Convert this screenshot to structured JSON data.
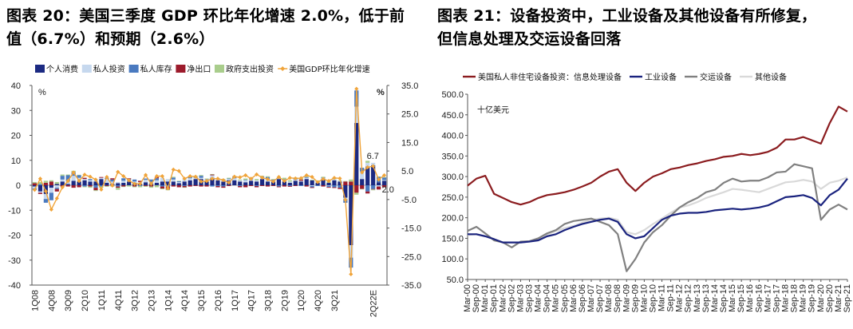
{
  "left": {
    "title_line1": "图表 20：美国三季度 GDP 环比年化增速 2.0%，低于前",
    "title_line2": "值（6.7%）和预期（2.6%）",
    "chart_data": {
      "type": "bar",
      "stacked": true,
      "legend_position": "top",
      "y_unit_left": "%",
      "y_unit_right": "%",
      "ylim": [
        -40,
        40
      ],
      "yticks": [
        -40,
        -30,
        -20,
        -10,
        0,
        10,
        20,
        30,
        40
      ],
      "y2lim": [
        -35,
        35
      ],
      "y2ticks": [
        "-35.0",
        "-25.0",
        "-15.0",
        "-5.0",
        "5.0",
        "15.0",
        "25.0",
        "35.0"
      ],
      "x_tick_labels": [
        "1Q08",
        "4Q08",
        "3Q09",
        "2Q10",
        "1Q11",
        "4Q11",
        "3Q12",
        "2Q13",
        "1Q14",
        "4Q14",
        "3Q15",
        "2Q16",
        "1Q17",
        "4Q17",
        "3Q18",
        "2Q19",
        "1Q20",
        "4Q20",
        "3Q21",
        "2Q22E"
      ],
      "annotations": [
        {
          "text": "6.7",
          "at": "2Q21"
        },
        {
          "text": "2.0",
          "at": "3Q21"
        }
      ],
      "series": [
        {
          "name": "个人消费",
          "color": "#1c2a82",
          "values": [
            -0.5,
            -2.5,
            -3.5,
            -1.0,
            0.5,
            1.5,
            0.5,
            1.8,
            1.5,
            2.0,
            1.5,
            1.5,
            2.5,
            1.0,
            0.5,
            0.8,
            1.0,
            1.5,
            1.0,
            0.5,
            1.2,
            0.8,
            1.0,
            1.5,
            1.5,
            1.5,
            0.8,
            1.5,
            2.0,
            2.5,
            2.5,
            1.5,
            3.0,
            2.0,
            1.5,
            2.0,
            2.0,
            1.5,
            1.2,
            1.8,
            1.5,
            2.5,
            1.5,
            1.5,
            2.5,
            1.5,
            1.0,
            1.8,
            1.5,
            2.5,
            2.0,
            1.0,
            2.5,
            1.0,
            2.0,
            1.5,
            -5.0,
            -24.0,
            25.0,
            2.5,
            7.5,
            8.0,
            1.2,
            1.8
          ]
        },
        {
          "name": "私人投资",
          "color": "#c6d8ee",
          "values": [
            -0.8,
            -0.5,
            -2.0,
            -2.0,
            -1.0,
            0.8,
            1.0,
            2.0,
            1.5,
            0.5,
            0.5,
            1.0,
            0.5,
            1.5,
            1.0,
            0.5,
            0.8,
            0.5,
            0.5,
            0.8,
            1.0,
            0.5,
            1.0,
            1.5,
            1.0,
            0.8,
            0.5,
            1.0,
            0.8,
            0.5,
            0.5,
            0.8,
            1.0,
            0.5,
            0.5,
            0.5,
            0.8,
            0.5,
            0.8,
            0.5,
            0.5,
            0.8,
            1.0,
            0.5,
            0.5,
            0.8,
            0.5,
            0.5,
            0.3,
            0.5,
            -0.3,
            0.2,
            0.3,
            -0.2,
            0.5,
            0.3,
            -0.5,
            -5.0,
            6.5,
            3.0,
            1.5,
            1.0,
            -0.5,
            0.3
          ]
        },
        {
          "name": "私人库存",
          "color": "#4a7ac0",
          "values": [
            -0.5,
            0.5,
            -1.5,
            -3.0,
            -0.5,
            1.5,
            2.5,
            1.5,
            1.0,
            -0.5,
            0.5,
            -1.0,
            -0.5,
            0.5,
            0.8,
            -0.5,
            1.0,
            0.5,
            0.8,
            -0.3,
            0.5,
            1.0,
            0.8,
            -0.5,
            -0.5,
            0.8,
            0.3,
            -0.3,
            0.5,
            0.3,
            0.8,
            0.2,
            -0.5,
            -0.3,
            -0.5,
            0.2,
            0.5,
            -0.3,
            0.2,
            0.5,
            -0.3,
            0.3,
            0.8,
            0.3,
            -0.5,
            0.2,
            -0.3,
            0.5,
            -0.3,
            0.3,
            -0.5,
            -0.3,
            0.3,
            -0.5,
            -0.8,
            -1.0,
            -1.5,
            -4.0,
            6.5,
            1.5,
            -2.5,
            -1.5,
            2.2,
            1.0
          ]
        },
        {
          "name": "净出口",
          "color": "#9c1b2c",
          "values": [
            0.8,
            -0.5,
            1.0,
            1.5,
            -1.0,
            -0.5,
            -0.5,
            -1.0,
            -0.8,
            0.5,
            -0.5,
            -1.0,
            0.3,
            -0.3,
            0.5,
            -0.5,
            -0.5,
            0.3,
            -0.5,
            0.5,
            -0.3,
            -0.5,
            0.5,
            -0.8,
            -1.2,
            -0.5,
            -0.8,
            -0.5,
            -0.5,
            -0.3,
            -0.5,
            -0.5,
            0.3,
            -0.5,
            -0.5,
            -0.3,
            0.2,
            -0.5,
            -0.8,
            -0.3,
            -0.5,
            -0.3,
            -0.5,
            -0.3,
            -0.3,
            -0.5,
            -0.3,
            -0.3,
            0.5,
            -0.5,
            -0.3,
            0.2,
            -0.5,
            -0.3,
            -0.3,
            -0.5,
            1.5,
            1.5,
            -3.0,
            -1.5,
            -0.8,
            -0.2,
            -1.2,
            -0.8
          ]
        },
        {
          "name": "政府支出投资",
          "color": "#a9cd8c",
          "values": [
            0.5,
            0.8,
            0.8,
            0.5,
            0.8,
            0.5,
            0.3,
            0.5,
            0.2,
            -0.3,
            -0.5,
            -0.3,
            -0.5,
            -0.3,
            -0.5,
            -0.8,
            -0.2,
            -0.5,
            -0.3,
            -0.5,
            -0.3,
            -0.5,
            -0.8,
            -0.3,
            -0.3,
            0.3,
            0.2,
            -0.2,
            0.3,
            0.5,
            0.3,
            0.2,
            0.2,
            0.3,
            0.5,
            0.3,
            0.2,
            0.3,
            0.5,
            0.3,
            0.5,
            0.2,
            0.3,
            0.2,
            0.3,
            0.5,
            0.5,
            0.3,
            0.5,
            0.3,
            0.2,
            0.5,
            0.3,
            0.5,
            0.5,
            0.2,
            0.2,
            0.8,
            -0.8,
            -0.1,
            0.8,
            -0.3,
            0.1,
            0.2
          ]
        },
        {
          "name": "美国GDP环比年化增速",
          "color": "#f0a43a",
          "kind": "line",
          "axis": "right",
          "values": [
            -1.6,
            2.3,
            -2.1,
            -8.5,
            -4.6,
            -0.7,
            1.5,
            4.5,
            1.5,
            3.7,
            3.0,
            2.0,
            -1.5,
            2.9,
            -0.1,
            4.7,
            3.2,
            1.7,
            0.5,
            0.5,
            3.6,
            0.5,
            3.2,
            3.2,
            -1.1,
            5.5,
            5.0,
            2.3,
            3.2,
            3.0,
            1.3,
            1.5,
            2.3,
            2.3,
            1.8,
            0.9,
            3.0,
            2.8,
            3.5,
            2.3,
            3.8,
            2.7,
            2.1,
            1.3,
            2.9,
            1.5,
            2.6,
            2.4,
            2.5,
            3.5,
            2.9,
            1.1,
            2.2,
            1.5,
            2.6,
            2.4,
            -5.1,
            -31.2,
            33.8,
            4.5,
            6.3,
            6.7,
            2.0,
            3.5
          ]
        }
      ],
      "legend": [
        "个人消费",
        "私人投资",
        "私人库存",
        "净出口",
        "政府支出投资",
        "美国GDP环比年化增速"
      ]
    }
  },
  "right": {
    "title_line1": "图表 21：设备投资中，工业设备及其他设备有所修复，",
    "title_line2": "但信息处理及交运设备回落",
    "chart_data": {
      "type": "line",
      "legend_position": "top",
      "unit_note": "十亿美元",
      "ylim": [
        50,
        500
      ],
      "yticks": [
        "50.0",
        "100.0",
        "150.0",
        "200.0",
        "250.0",
        "300.0",
        "350.0",
        "400.0",
        "450.0",
        "500.0"
      ],
      "x_tick_labels": [
        "Mar-00",
        "Sep-00",
        "Mar-01",
        "Sep-01",
        "Mar-02",
        "Sep-02",
        "Mar-03",
        "Sep-03",
        "Mar-04",
        "Sep-04",
        "Mar-05",
        "Sep-05",
        "Mar-06",
        "Sep-06",
        "Mar-07",
        "Sep-07",
        "Mar-08",
        "Sep-08",
        "Mar-09",
        "Sep-09",
        "Mar-10",
        "Sep-10",
        "Mar-11",
        "Sep-11",
        "Mar-12",
        "Sep-12",
        "Mar-13",
        "Sep-13",
        "Mar-14",
        "Sep-14",
        "Mar-15",
        "Sep-15",
        "Mar-16",
        "Sep-16",
        "Mar-17",
        "Sep-17",
        "Mar-18",
        "Sep-18",
        "Mar-19",
        "Sep-19",
        "Mar-20",
        "Sep-20",
        "Mar-21",
        "Sep-21"
      ],
      "series": [
        {
          "name": "美国私人非住宅设备投资：信息处理设备",
          "color": "#8b1c1f",
          "width": 2.2,
          "values": [
            278,
            295,
            302,
            258,
            248,
            238,
            232,
            238,
            248,
            255,
            258,
            262,
            268,
            276,
            285,
            300,
            312,
            318,
            285,
            265,
            285,
            300,
            308,
            318,
            322,
            328,
            332,
            338,
            342,
            348,
            350,
            355,
            352,
            355,
            360,
            370,
            390,
            390,
            396,
            388,
            380,
            430,
            470,
            458
          ]
        },
        {
          "name": "工业设备",
          "color": "#1a237e",
          "width": 2.2,
          "values": [
            160,
            160,
            155,
            148,
            140,
            140,
            140,
            142,
            145,
            155,
            160,
            170,
            178,
            185,
            190,
            195,
            198,
            190,
            160,
            150,
            155,
            175,
            195,
            205,
            210,
            212,
            212,
            214,
            218,
            220,
            222,
            220,
            222,
            225,
            230,
            240,
            250,
            252,
            255,
            248,
            230,
            255,
            268,
            295
          ]
        },
        {
          "name": "交运设备",
          "color": "#808080",
          "width": 2.2,
          "values": [
            168,
            178,
            162,
            145,
            140,
            128,
            142,
            143,
            150,
            162,
            170,
            185,
            192,
            195,
            198,
            190,
            182,
            160,
            70,
            100,
            140,
            165,
            182,
            205,
            225,
            238,
            248,
            262,
            268,
            285,
            295,
            288,
            290,
            290,
            298,
            310,
            312,
            330,
            325,
            320,
            195,
            220,
            232,
            220
          ]
        },
        {
          "name": "其他设备",
          "color": "#d9d9d9",
          "width": 2.2,
          "values": [
            158,
            160,
            155,
            148,
            140,
            140,
            140,
            142,
            148,
            160,
            168,
            175,
            180,
            188,
            195,
            198,
            200,
            195,
            165,
            160,
            170,
            185,
            198,
            212,
            225,
            230,
            238,
            248,
            255,
            262,
            270,
            268,
            265,
            262,
            270,
            278,
            286,
            288,
            292,
            288,
            270,
            285,
            290,
            298
          ]
        }
      ],
      "legend": [
        "美国私人非住宅设备投资：信息处理设备",
        "工业设备",
        "交运设备",
        "其他设备"
      ]
    }
  }
}
